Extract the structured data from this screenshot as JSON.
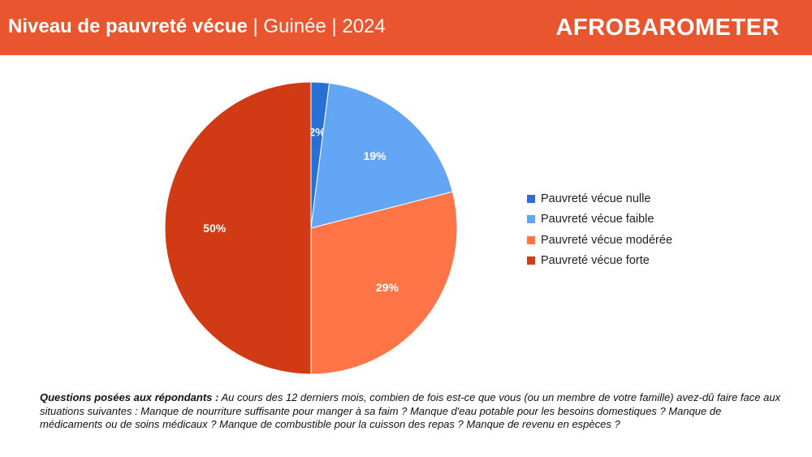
{
  "header": {
    "title_main": "Niveau de pauvreté vécue",
    "title_country": " | Guinée | 2024",
    "logo": "AFROBAROMETER",
    "background": "#e8552f"
  },
  "chart_data": {
    "type": "pie",
    "title": "Niveau de pauvreté vécue",
    "categories": [
      "Pauvreté vécue nulle",
      "Pauvreté vécue faible",
      "Pauvreté vécue modérée",
      "Pauvreté vécue forte"
    ],
    "values": [
      2,
      19,
      29,
      50
    ],
    "labels": [
      "2%",
      "19%",
      "29%",
      "50%"
    ],
    "colors": [
      "#2a6fd6",
      "#63a6f5",
      "#ff7547",
      "#d03b16"
    ],
    "start_angle_deg": 0,
    "direction": "clockwise",
    "legend_position": "right"
  },
  "footnote": {
    "lead": "Questions posées aux répondants :",
    "text": " Au cours des 12 derniers mois, combien de fois est-ce que vous (ou un membre de votre famille) avez-dû faire face aux situations suivantes : Manque de nourriture suffisante pour manger à sa faim ? Manque d'eau potable pour les besoins domestiques ? Manque de médicaments ou de soins médicaux ? Manque de combustible pour la cuisson des repas ? Manque de revenu en espèces ?"
  }
}
